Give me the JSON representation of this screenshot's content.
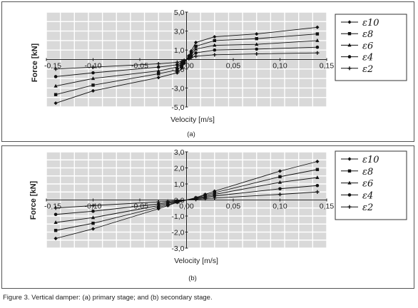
{
  "caption": "Figure 3. Vertical damper: (a) primary stage; and (b) secondary stage.",
  "chart_data": [
    {
      "type": "line",
      "panel_label": "(a)",
      "xlabel": "Velocity [m/s]",
      "ylabel": "Force [kN]",
      "xlim": [
        -0.15,
        0.15
      ],
      "ylim": [
        -5.0,
        5.0
      ],
      "x_tick_labels": [
        "-0,15",
        "-0,10",
        "-0,05",
        "0,00",
        "0,05",
        "0,10",
        "0,15"
      ],
      "x_tick_values": [
        -0.15,
        -0.1,
        -0.05,
        0.0,
        0.05,
        0.1,
        0.15
      ],
      "y_tick_labels": [
        "5,0",
        "3,0",
        "1,0",
        "-1,0",
        "-3,0",
        "-5,0"
      ],
      "y_tick_values": [
        5.0,
        3.0,
        1.0,
        -1.0,
        -3.0,
        -5.0
      ],
      "grid": true,
      "legend_position": "right",
      "series": [
        {
          "name": "ε10",
          "marker": "diamond",
          "x": [
            -0.14,
            -0.1,
            -0.03,
            -0.01,
            -0.005,
            -0.0025,
            0.0025,
            0.005,
            0.01,
            0.03,
            0.075,
            0.14
          ],
          "y": [
            -4.6,
            -3.3,
            -1.9,
            -1.4,
            -0.9,
            -0.4,
            0.4,
            0.9,
            1.8,
            2.4,
            2.7,
            3.4
          ]
        },
        {
          "name": "ε8",
          "marker": "square",
          "x": [
            -0.14,
            -0.1,
            -0.03,
            -0.01,
            -0.005,
            -0.0025,
            0.0025,
            0.005,
            0.01,
            0.03,
            0.075,
            0.14
          ],
          "y": [
            -3.7,
            -2.7,
            -1.5,
            -1.1,
            -0.7,
            -0.3,
            0.3,
            0.7,
            1.4,
            2.0,
            2.2,
            2.7
          ]
        },
        {
          "name": "ε6",
          "marker": "triangle",
          "x": [
            -0.14,
            -0.1,
            -0.03,
            -0.01,
            -0.005,
            -0.0025,
            0.0025,
            0.005,
            0.01,
            0.03,
            0.075,
            0.14
          ],
          "y": [
            -2.8,
            -2.0,
            -1.2,
            -0.8,
            -0.5,
            -0.25,
            0.25,
            0.5,
            1.1,
            1.5,
            1.6,
            2.0
          ]
        },
        {
          "name": "ε4",
          "marker": "circle",
          "x": [
            -0.14,
            -0.1,
            -0.03,
            -0.01,
            -0.005,
            -0.0025,
            0.0025,
            0.005,
            0.01,
            0.03,
            0.075,
            0.14
          ],
          "y": [
            -1.8,
            -1.4,
            -0.8,
            -0.55,
            -0.35,
            -0.15,
            0.15,
            0.35,
            0.7,
            1.0,
            1.1,
            1.3
          ]
        },
        {
          "name": "ε2",
          "marker": "plus",
          "x": [
            -0.14,
            -0.1,
            -0.03,
            -0.01,
            -0.005,
            -0.0025,
            0.0025,
            0.005,
            0.01,
            0.03,
            0.075,
            0.14
          ],
          "y": [
            -1.0,
            -0.8,
            -0.45,
            -0.3,
            -0.2,
            -0.1,
            0.1,
            0.2,
            0.35,
            0.5,
            0.6,
            0.7
          ]
        }
      ]
    },
    {
      "type": "line",
      "panel_label": "(b)",
      "xlabel": "Velocity [m/s]",
      "ylabel": "Force [kN]",
      "xlim": [
        -0.15,
        0.15
      ],
      "ylim": [
        -3.0,
        3.0
      ],
      "x_tick_labels": [
        "-0,15",
        "-0,10",
        "-0,05",
        "0,00",
        "0,05",
        "0,10",
        "0,15"
      ],
      "x_tick_values": [
        -0.15,
        -0.1,
        -0.05,
        0.0,
        0.05,
        0.1,
        0.15
      ],
      "y_tick_labels": [
        "3,0",
        "2,0",
        "1,0",
        "0,0",
        "-1,0",
        "-2,0",
        "-3,0"
      ],
      "y_tick_values": [
        3.0,
        2.0,
        1.0,
        0.0,
        -1.0,
        -2.0,
        -3.0
      ],
      "grid": true,
      "legend_position": "right",
      "series": [
        {
          "name": "ε10",
          "marker": "diamond",
          "x": [
            -0.14,
            -0.1,
            -0.03,
            -0.02,
            -0.01,
            0.01,
            0.02,
            0.03,
            0.1,
            0.14
          ],
          "y": [
            -2.4,
            -1.8,
            -0.55,
            -0.35,
            -0.15,
            0.15,
            0.35,
            0.55,
            1.8,
            2.4
          ]
        },
        {
          "name": "ε8",
          "marker": "square",
          "x": [
            -0.14,
            -0.1,
            -0.03,
            -0.02,
            -0.01,
            0.01,
            0.02,
            0.03,
            0.1,
            0.14
          ],
          "y": [
            -1.9,
            -1.45,
            -0.45,
            -0.3,
            -0.12,
            0.12,
            0.3,
            0.45,
            1.45,
            1.9
          ]
        },
        {
          "name": "ε6",
          "marker": "triangle",
          "x": [
            -0.14,
            -0.1,
            -0.03,
            -0.02,
            -0.01,
            0.01,
            0.02,
            0.03,
            0.1,
            0.14
          ],
          "y": [
            -1.4,
            -1.1,
            -0.35,
            -0.22,
            -0.1,
            0.1,
            0.22,
            0.35,
            1.1,
            1.4
          ]
        },
        {
          "name": "ε4",
          "marker": "circle",
          "x": [
            -0.14,
            -0.1,
            -0.03,
            -0.02,
            -0.01,
            0.01,
            0.02,
            0.03,
            0.1,
            0.14
          ],
          "y": [
            -0.9,
            -0.7,
            -0.25,
            -0.15,
            -0.07,
            0.07,
            0.15,
            0.25,
            0.7,
            0.9
          ]
        },
        {
          "name": "ε2",
          "marker": "plus",
          "x": [
            -0.14,
            -0.1,
            -0.03,
            -0.02,
            -0.01,
            0.01,
            0.02,
            0.03,
            0.1,
            0.14
          ],
          "y": [
            -0.5,
            -0.35,
            -0.12,
            -0.08,
            -0.04,
            0.04,
            0.08,
            0.12,
            0.35,
            0.5
          ]
        }
      ]
    }
  ]
}
